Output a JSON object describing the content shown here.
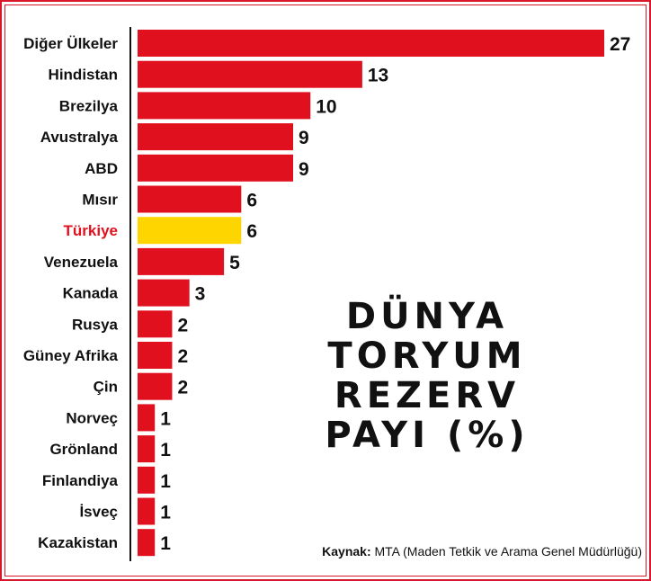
{
  "chart_data": {
    "type": "bar",
    "orientation": "horizontal",
    "title_lines": [
      "DÜNYA",
      "TORYUM",
      "REZERV",
      "PAYI (%)"
    ],
    "categories": [
      "Diğer Ülkeler",
      "Hindistan",
      "Brezilya",
      "Avustralya",
      "ABD",
      "Mısır",
      "Türkiye",
      "Venezuela",
      "Kanada",
      "Rusya",
      "Güney Afrika",
      "Çin",
      "Norveç",
      "Grönland",
      "Finlandiya",
      "İsveç",
      "Kazakistan"
    ],
    "values": [
      27,
      13,
      10,
      9,
      9,
      6,
      6,
      5,
      3,
      2,
      2,
      2,
      1,
      1,
      1,
      1,
      1
    ],
    "highlight": "Türkiye",
    "xlim": [
      0,
      27
    ],
    "grid": false,
    "colors": {
      "bar": "#e0101e",
      "highlight_bar": "#ffd500",
      "highlight_label": "#e0101e",
      "text": "#111111"
    }
  },
  "source": {
    "label": "Kaynak:",
    "text": "MTA (Maden Tetkik ve Arama Genel Müdürlüğü)"
  }
}
